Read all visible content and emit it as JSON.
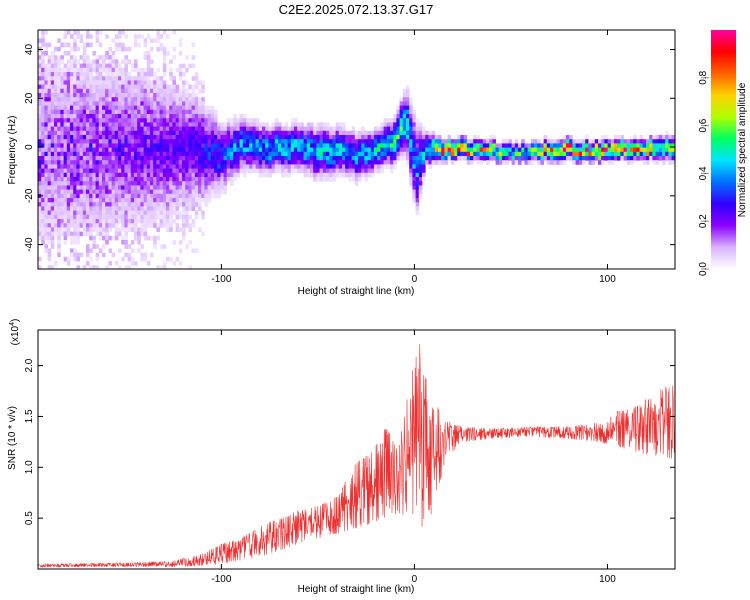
{
  "title": "C2E2.2025.072.13.37.G17",
  "chart_data": [
    {
      "type": "heatmap",
      "xlabel": "Height of straight line (km)",
      "ylabel": "Frequency (Hz)",
      "xlim": [
        -195,
        135
      ],
      "ylim": [
        -50,
        48
      ],
      "xticks": [
        -100,
        0,
        100
      ],
      "xtick_labels": [
        "-100",
        "0",
        "100"
      ],
      "yticks": [
        40,
        20,
        0,
        -20,
        -40
      ],
      "ytick_labels": [
        "40",
        "20",
        "0",
        "-20",
        "-40"
      ],
      "colorbar": {
        "label": "Normalized spectral amplitude",
        "range": [
          0,
          1
        ],
        "ticks": [
          0.0,
          0.2,
          0.4,
          0.6,
          0.8
        ],
        "tick_labels": [
          "0.0",
          "0.2",
          "0.4",
          "0.6",
          "0.8"
        ],
        "colormap": "rainbow",
        "stops": [
          "#ffffff",
          "#d9b3ff",
          "#8a00ff",
          "#3000ff",
          "#0070ff",
          "#00e5ff",
          "#00ff60",
          "#b0ff00",
          "#ffd000",
          "#ff6000",
          "#ff0000",
          "#ff00a0"
        ]
      },
      "ridge": [
        {
          "x": -195,
          "f": 0,
          "amp": 0.12,
          "spread": 34
        },
        {
          "x": -150,
          "f": 0,
          "amp": 0.18,
          "spread": 28
        },
        {
          "x": -115,
          "f": 0,
          "amp": 0.25,
          "spread": 18
        },
        {
          "x": -100,
          "f": -3,
          "amp": 0.35,
          "spread": 10
        },
        {
          "x": -90,
          "f": 2,
          "amp": 0.42,
          "spread": 8
        },
        {
          "x": -75,
          "f": 0,
          "amp": 0.45,
          "spread": 7
        },
        {
          "x": -60,
          "f": 1,
          "amp": 0.45,
          "spread": 7
        },
        {
          "x": -50,
          "f": -2,
          "amp": 0.45,
          "spread": 8
        },
        {
          "x": -40,
          "f": 0,
          "amp": 0.45,
          "spread": 7
        },
        {
          "x": -30,
          "f": -3,
          "amp": 0.42,
          "spread": 7
        },
        {
          "x": -20,
          "f": 0,
          "amp": 0.5,
          "spread": 6
        },
        {
          "x": -10,
          "f": 4,
          "amp": 0.55,
          "spread": 7
        },
        {
          "x": -5,
          "f": 12,
          "amp": 0.5,
          "spread": 10
        },
        {
          "x": 0,
          "f": -8,
          "amp": 0.4,
          "spread": 14
        },
        {
          "x": 5,
          "f": 0,
          "amp": 0.5,
          "spread": 5
        },
        {
          "x": 15,
          "f": 0,
          "amp": 0.95,
          "spread": 3
        },
        {
          "x": 30,
          "f": 0,
          "amp": 0.8,
          "spread": 3
        },
        {
          "x": 45,
          "f": -1,
          "amp": 0.6,
          "spread": 3
        },
        {
          "x": 60,
          "f": -1,
          "amp": 0.55,
          "spread": 3
        },
        {
          "x": 75,
          "f": 0,
          "amp": 0.95,
          "spread": 3
        },
        {
          "x": 90,
          "f": -1,
          "amp": 0.85,
          "spread": 3
        },
        {
          "x": 105,
          "f": 0,
          "amp": 0.9,
          "spread": 3
        },
        {
          "x": 120,
          "f": 0,
          "amp": 0.8,
          "spread": 3
        },
        {
          "x": 135,
          "f": 0,
          "amp": 0.55,
          "spread": 4
        }
      ]
    },
    {
      "type": "line",
      "xlabel": "Height of straight line (km)",
      "ylabel": "SNR (10 * v/v)",
      "y_multiplier_label": "(x10",
      "y_multiplier_exponent": "4",
      "y_multiplier_close": ")",
      "xlim": [
        -195,
        135
      ],
      "ylim": [
        0,
        2.35
      ],
      "xticks": [
        -100,
        0,
        100
      ],
      "xtick_labels": [
        "-100",
        "0",
        "100"
      ],
      "yticks": [
        0.5,
        1.0,
        1.5,
        2.0
      ],
      "ytick_labels": [
        "0.5",
        "1.0",
        "1.5",
        "2.0"
      ],
      "color": "#ee3030",
      "envelope": {
        "x": [
          -195,
          -150,
          -125,
          -110,
          -100,
          -90,
          -80,
          -70,
          -60,
          -50,
          -40,
          -30,
          -22,
          -15,
          -8,
          -2,
          3,
          8,
          12,
          18,
          25,
          40,
          60,
          80,
          95,
          105,
          115,
          125,
          135
        ],
        "min": [
          0.02,
          0.02,
          0.02,
          0.03,
          0.05,
          0.08,
          0.12,
          0.18,
          0.25,
          0.3,
          0.35,
          0.4,
          0.45,
          0.5,
          0.55,
          0.45,
          0.4,
          0.45,
          0.8,
          1.1,
          1.25,
          1.28,
          1.3,
          1.28,
          1.25,
          1.2,
          1.15,
          1.1,
          1.05
        ],
        "max": [
          0.05,
          0.06,
          0.08,
          0.15,
          0.25,
          0.3,
          0.42,
          0.5,
          0.58,
          0.62,
          0.72,
          1.05,
          1.15,
          1.4,
          1.2,
          1.9,
          2.3,
          1.6,
          1.6,
          1.45,
          1.4,
          1.38,
          1.4,
          1.4,
          1.45,
          1.55,
          1.6,
          1.75,
          1.85
        ]
      }
    }
  ]
}
